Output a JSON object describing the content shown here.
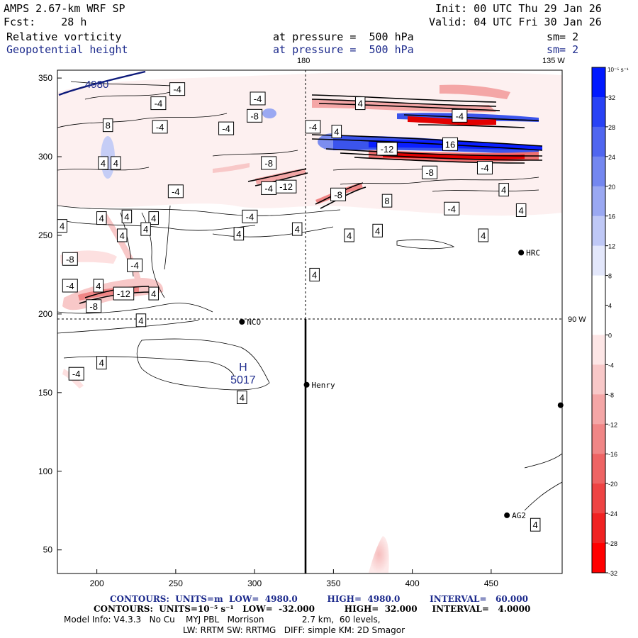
{
  "header": {
    "model": "AMPS 2.67-km WRF SP",
    "forecast": "Fcst:    28 h",
    "init": "Init: 00 UTC Thu 29 Jan 26",
    "valid": "Valid: 04 UTC Fri 30 Jan 26",
    "field1": {
      "name": "Relative vorticity",
      "level": "at pressure =  500 hPa",
      "smooth": "sm= 2"
    },
    "field2": {
      "name": "Geopotential height",
      "level": "at pressure =  500 hPa",
      "smooth": "sm= 2"
    }
  },
  "grid_labels": {
    "lon_180": "180",
    "lon_135w": "135 W",
    "lon_90w": "90 W"
  },
  "axes": {
    "x_ticks": [
      "200",
      "250",
      "300",
      "350",
      "400",
      "450"
    ],
    "y_ticks": [
      "350",
      "300",
      "250",
      "200",
      "150",
      "100",
      "50"
    ],
    "x_range": [
      175,
      495
    ],
    "y_range": [
      35,
      355
    ]
  },
  "colorbar": {
    "units": "10⁻⁵ s⁻¹",
    "labels": [
      "32",
      "28",
      "24",
      "20",
      "16",
      "12",
      "8",
      "4",
      "0",
      "-4",
      "-8",
      "-12",
      "-16",
      "-20",
      "-24",
      "-28",
      "-32"
    ],
    "colors": [
      "#0019ff",
      "#2842f5",
      "#5066f0",
      "#7487f0",
      "#9aa8f2",
      "#bfc8f6",
      "#e3e7fb",
      "#ffffff",
      "#ffffff",
      "#fde6e6",
      "#f8c8c8",
      "#f4a6a6",
      "#f08686",
      "#ee6464",
      "#ee4444",
      "#f02222",
      "#ff0000"
    ]
  },
  "stations": [
    {
      "name": "NCO",
      "x": 292,
      "y": 195
    },
    {
      "name": "Henry",
      "x": 333,
      "y": 155
    },
    {
      "name": "HRC",
      "x": 469,
      "y": 239
    },
    {
      "name": "AG2",
      "x": 460,
      "y": 72
    },
    {
      "name": "",
      "x": 494,
      "y": 142
    }
  ],
  "high_center": {
    "letter": "H",
    "value": "5017",
    "x": 290,
    "y": 155
  },
  "height_label": {
    "value": "4980",
    "x": 200,
    "y": 346
  },
  "contour_labels": [
    {
      "text": "-4",
      "x": 239,
      "y": 334
    },
    {
      "text": "-4",
      "x": 251,
      "y": 343
    },
    {
      "text": "-4",
      "x": 302,
      "y": 337
    },
    {
      "text": "-8",
      "x": 300,
      "y": 326
    },
    {
      "text": "8",
      "x": 207,
      "y": 320
    },
    {
      "text": "-4",
      "x": 240,
      "y": 319
    },
    {
      "text": "-4",
      "x": 282,
      "y": 318
    },
    {
      "text": "-4",
      "x": 337,
      "y": 319
    },
    {
      "text": "4",
      "x": 352,
      "y": 316
    },
    {
      "text": "4",
      "x": 367,
      "y": 334
    },
    {
      "text": "-4",
      "x": 430,
      "y": 326
    },
    {
      "text": "4",
      "x": 204,
      "y": 296
    },
    {
      "text": "4",
      "x": 212,
      "y": 296
    },
    {
      "text": "-8",
      "x": 309,
      "y": 296
    },
    {
      "text": "-12",
      "x": 384,
      "y": 305
    },
    {
      "text": "16",
      "x": 424,
      "y": 308
    },
    {
      "text": "-8",
      "x": 411,
      "y": 290
    },
    {
      "text": "-4",
      "x": 446,
      "y": 293
    },
    {
      "text": "-4",
      "x": 250,
      "y": 278
    },
    {
      "text": "-4",
      "x": 309,
      "y": 280
    },
    {
      "text": "-12",
      "x": 320,
      "y": 281
    },
    {
      "text": "-8",
      "x": 353,
      "y": 276
    },
    {
      "text": "8",
      "x": 384,
      "y": 272
    },
    {
      "text": "-4",
      "x": 425,
      "y": 267
    },
    {
      "text": "4",
      "x": 458,
      "y": 279
    },
    {
      "text": "4",
      "x": 469,
      "y": 266
    },
    {
      "text": "4",
      "x": 178,
      "y": 256
    },
    {
      "text": "4",
      "x": 203,
      "y": 261
    },
    {
      "text": "4",
      "x": 219,
      "y": 262
    },
    {
      "text": "4",
      "x": 236,
      "y": 261
    },
    {
      "text": "-4",
      "x": 297,
      "y": 262
    },
    {
      "text": "4",
      "x": 216,
      "y": 250
    },
    {
      "text": "4",
      "x": 231,
      "y": 254
    },
    {
      "text": "4",
      "x": 290,
      "y": 251
    },
    {
      "text": "4",
      "x": 327,
      "y": 254
    },
    {
      "text": "4",
      "x": 360,
      "y": 250
    },
    {
      "text": "4",
      "x": 378,
      "y": 253
    },
    {
      "text": "4",
      "x": 445,
      "y": 250
    },
    {
      "text": "-8",
      "x": 183,
      "y": 235
    },
    {
      "text": "-4",
      "x": 224,
      "y": 231
    },
    {
      "text": "4",
      "x": 338,
      "y": 225
    },
    {
      "text": "-4",
      "x": 183,
      "y": 218
    },
    {
      "text": "4",
      "x": 201,
      "y": 218
    },
    {
      "text": "-12",
      "x": 217,
      "y": 213
    },
    {
      "text": "4",
      "x": 236,
      "y": 213
    },
    {
      "text": "-8",
      "x": 198,
      "y": 205
    },
    {
      "text": "4",
      "x": 228,
      "y": 196
    },
    {
      "text": "4",
      "x": 203,
      "y": 169
    },
    {
      "text": "-4",
      "x": 187,
      "y": 162
    },
    {
      "text": "4",
      "x": 292,
      "y": 147
    },
    {
      "text": "4",
      "x": 478,
      "y": 66
    }
  ],
  "footer": {
    "line1": "CONTOURS:  UNITS=m  LOW=  4980.0          HIGH=  4980.0          INTERVAL=   60.000",
    "line2": "CONTOURS:  UNITS=10⁻⁵ s⁻¹   LOW=  -32.000          HIGH=  32.000     INTERVAL=   4.0000",
    "line3": "Model Info: V4.3.3   No Cu    MYJ PBL   Morrison              2.7 km,  60 levels,",
    "line4": "LW: RRTM SW: RRTMG   DIFF: simple KM: 2D Smagor"
  }
}
